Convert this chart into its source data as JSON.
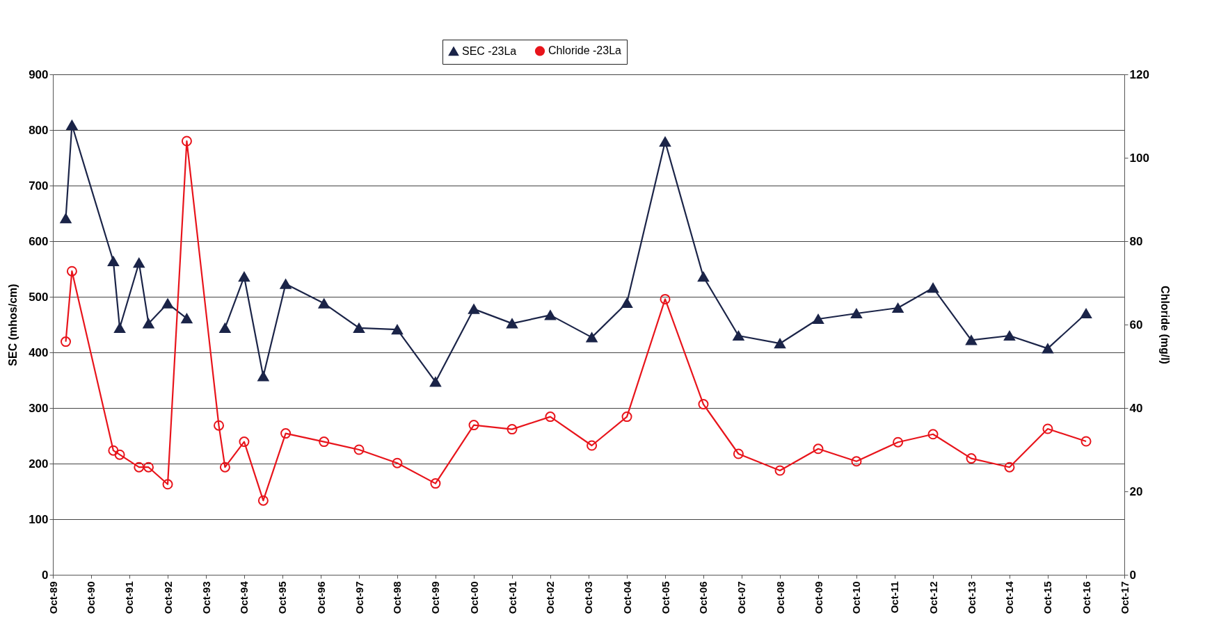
{
  "chart_data": {
    "type": "line",
    "x": [
      "1990-02",
      "1990-04",
      "1991-05",
      "1991-07",
      "1992-01",
      "1992-04",
      "1992-10",
      "1993-04",
      "1994-02",
      "1994-04",
      "1994-10",
      "1995-04",
      "1995-11",
      "1996-11",
      "1997-10",
      "1998-10",
      "1999-10",
      "2000-10",
      "2001-10",
      "2002-10",
      "2003-11",
      "2004-10",
      "2005-10",
      "2006-10",
      "2007-09",
      "2008-10",
      "2009-10",
      "2010-10",
      "2011-11",
      "2012-10",
      "2013-10",
      "2014-10",
      "2015-10",
      "2016-10"
    ],
    "series": [
      {
        "name": "SEC -23La",
        "color": "#1b2448",
        "marker": "triangle",
        "values": [
          641,
          809,
          564,
          444,
          561,
          452,
          488,
          461,
          null,
          444,
          536,
          357,
          523,
          488,
          444,
          441,
          347,
          478,
          452,
          467,
          427,
          489,
          779,
          536,
          430,
          416,
          460,
          470,
          480,
          516,
          422,
          430,
          407,
          470
        ]
      },
      {
        "name": "Chloride -23La",
        "color": "#e8141b",
        "marker": "circle",
        "axis": "y2",
        "values": [
          55.9,
          72.8,
          29.8,
          28.8,
          25.8,
          25.8,
          21.7,
          104,
          35.8,
          25.8,
          31.9,
          17.8,
          33.9,
          31.9,
          30,
          26.8,
          21.9,
          35.9,
          34.9,
          37.9,
          31,
          37.9,
          66.1,
          40.9,
          29,
          25,
          30.2,
          27.2,
          31.8,
          33.7,
          27.9,
          25.8,
          35,
          32
        ]
      }
    ],
    "ylabel": "SEC (mhos/cm)",
    "y2label": "Chloride (mg/l)",
    "xlim": [
      "1989-10",
      "2017-10"
    ],
    "xticks": [
      {
        "value": "1989-10",
        "label": "Oct-89"
      },
      {
        "value": "1990-10",
        "label": "Oct-90"
      },
      {
        "value": "1991-10",
        "label": "Oct-91"
      },
      {
        "value": "1992-10",
        "label": "Oct-92"
      },
      {
        "value": "1993-10",
        "label": "Oct-93"
      },
      {
        "value": "1994-10",
        "label": "Oct-94"
      },
      {
        "value": "1995-10",
        "label": "Oct-95"
      },
      {
        "value": "1996-10",
        "label": "Oct-96"
      },
      {
        "value": "1997-10",
        "label": "Oct-97"
      },
      {
        "value": "1998-10",
        "label": "Oct-98"
      },
      {
        "value": "1999-10",
        "label": "Oct-99"
      },
      {
        "value": "2000-10",
        "label": "Oct-00"
      },
      {
        "value": "2001-10",
        "label": "Oct-01"
      },
      {
        "value": "2002-10",
        "label": "Oct-02"
      },
      {
        "value": "2003-10",
        "label": "Oct-03"
      },
      {
        "value": "2004-10",
        "label": "Oct-04"
      },
      {
        "value": "2005-10",
        "label": "Oct-05"
      },
      {
        "value": "2006-10",
        "label": "Oct-06"
      },
      {
        "value": "2007-10",
        "label": "Oct-07"
      },
      {
        "value": "2008-10",
        "label": "Oct-08"
      },
      {
        "value": "2009-10",
        "label": "Oct-09"
      },
      {
        "value": "2010-10",
        "label": "Oct-10"
      },
      {
        "value": "2011-10",
        "label": "Oct-11"
      },
      {
        "value": "2012-10",
        "label": "Oct-12"
      },
      {
        "value": "2013-10",
        "label": "Oct-13"
      },
      {
        "value": "2014-10",
        "label": "Oct-14"
      },
      {
        "value": "2015-10",
        "label": "Oct-15"
      },
      {
        "value": "2016-10",
        "label": "Oct-16"
      },
      {
        "value": "2017-10",
        "label": "Oct-17"
      }
    ],
    "ylim": [
      0,
      900
    ],
    "yticks": [
      0,
      100,
      200,
      300,
      400,
      500,
      600,
      700,
      800,
      900
    ],
    "y2lim": [
      0,
      120
    ],
    "y2ticks": [
      0,
      20,
      40,
      60,
      80,
      100,
      120
    ],
    "grid": "y",
    "legend": "top",
    "line_style": "solid"
  }
}
